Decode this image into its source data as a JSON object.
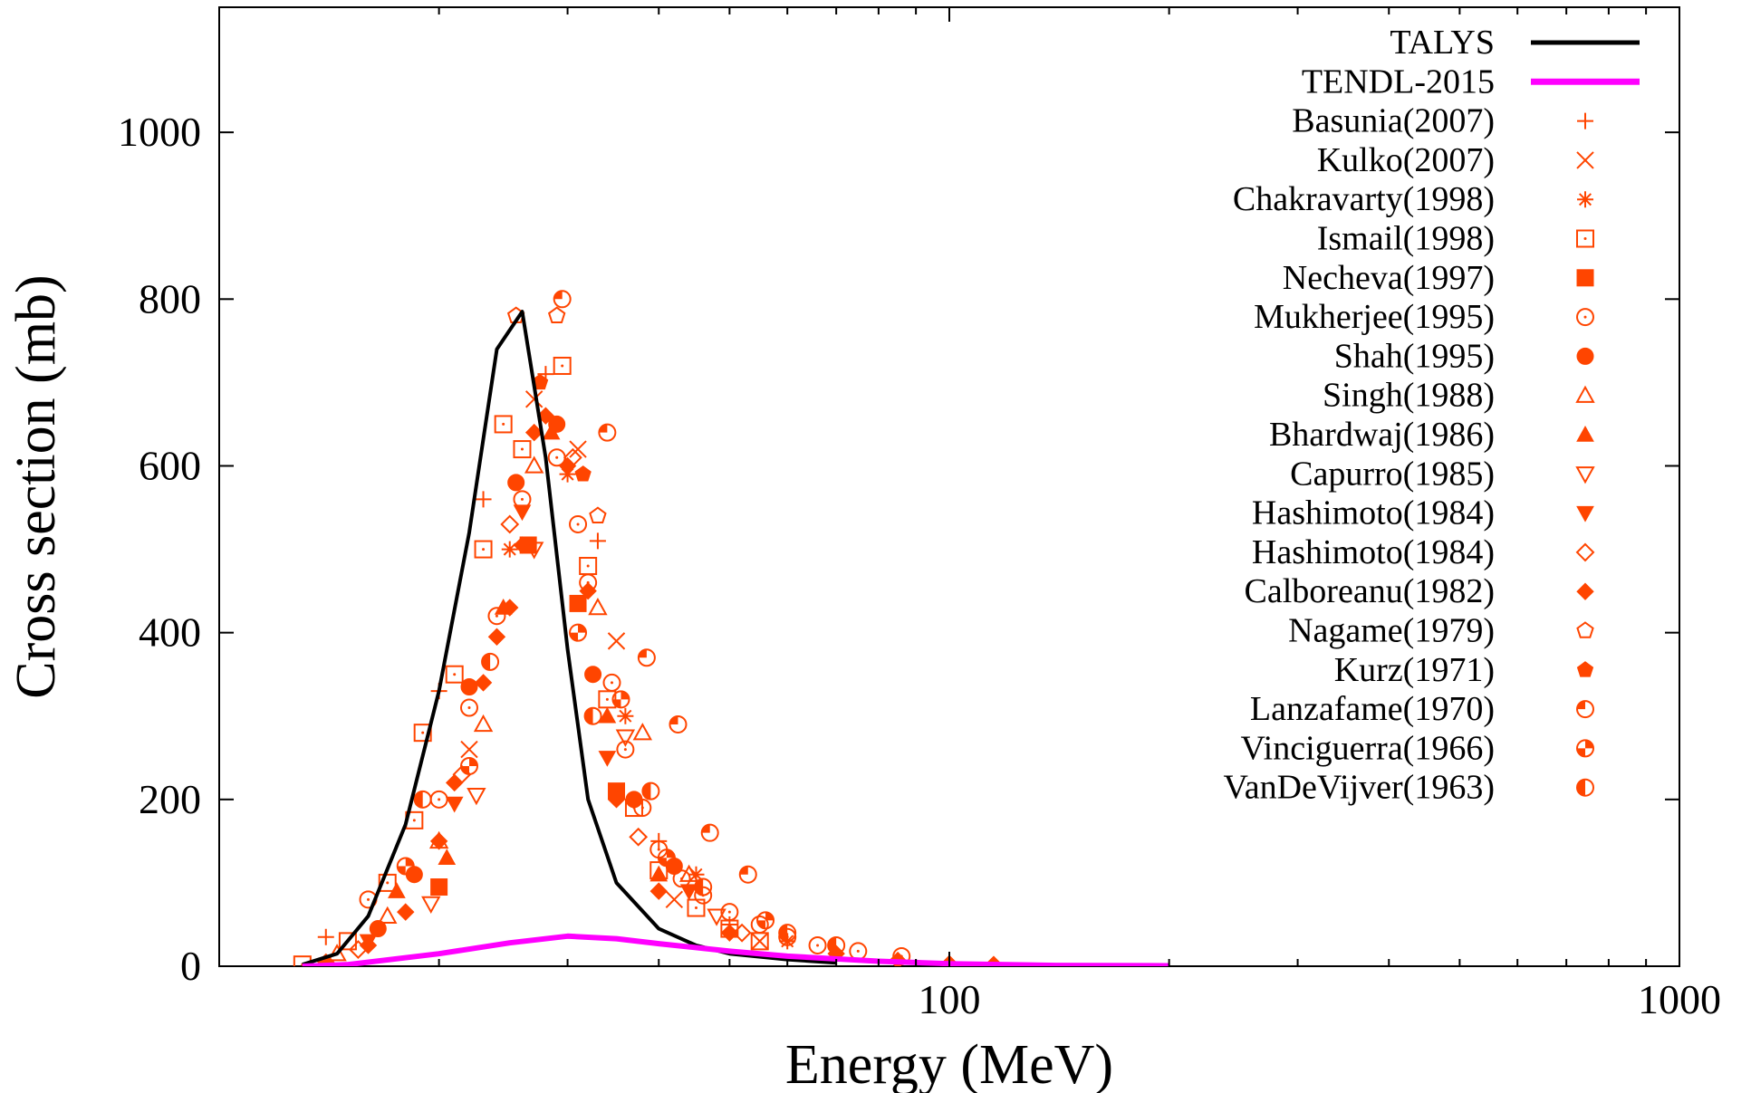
{
  "chart_data": {
    "type": "scatter",
    "xlabel": "Energy (MeV)",
    "ylabel": "Cross section (mb)",
    "xscale": "log",
    "xlim": [
      10,
      1000
    ],
    "ylim": [
      0,
      1150
    ],
    "x_ticks": [
      100,
      1000
    ],
    "x_tick_labels": [
      "100",
      "1000"
    ],
    "y_ticks": [
      0,
      200,
      400,
      600,
      800,
      1000
    ],
    "y_tick_labels": [
      "0",
      "200",
      "400",
      "600",
      "800",
      "1000"
    ],
    "grid": false,
    "legend_position": "top-right",
    "marker_color": "#ff4500",
    "curves": [
      {
        "name": "TALYS",
        "color": "#000000",
        "x": [
          13.0,
          14.5,
          16.0,
          18.0,
          20.0,
          22.0,
          24.0,
          26.0,
          28.0,
          30.0,
          32.0,
          35.0,
          40.0,
          45.0,
          50.0,
          60.0,
          70.0
        ],
        "y": [
          2,
          15,
          60,
          170,
          330,
          520,
          740,
          785,
          610,
          380,
          200,
          100,
          45,
          25,
          15,
          8,
          4
        ]
      },
      {
        "name": "TENDL-2015",
        "color": "#ff00ff",
        "x": [
          13.0,
          15.0,
          20.0,
          25.0,
          30.0,
          35.0,
          40.0,
          50.0,
          60.0,
          80.0,
          100.0,
          140.0,
          200.0
        ],
        "y": [
          0,
          2,
          15,
          28,
          36,
          33,
          27,
          18,
          12,
          6,
          3,
          1,
          0.5
        ]
      }
    ],
    "series": [
      {
        "name": "Basunia(2007)",
        "marker": "plus",
        "points": [
          [
            14.0,
            35
          ],
          [
            20.0,
            330
          ],
          [
            23.0,
            560
          ],
          [
            28.0,
            710
          ],
          [
            33.0,
            510
          ],
          [
            40.0,
            150
          ],
          [
            50.0,
            50
          ]
        ]
      },
      {
        "name": "Kulko(2007)",
        "marker": "x",
        "points": [
          [
            22.0,
            260
          ],
          [
            27.0,
            680
          ],
          [
            31.0,
            620
          ],
          [
            35.0,
            390
          ],
          [
            42.0,
            80
          ],
          [
            55.0,
            30
          ]
        ]
      },
      {
        "name": "Chakravarty(1998)",
        "marker": "star",
        "points": [
          [
            25.0,
            500
          ],
          [
            30.0,
            590
          ],
          [
            36.0,
            300
          ],
          [
            45.0,
            110
          ],
          [
            60.0,
            30
          ]
        ]
      },
      {
        "name": "Ismail(1998)",
        "marker": "square-open",
        "points": [
          [
            13.0,
            2
          ],
          [
            15.0,
            30
          ],
          [
            17.0,
            100
          ],
          [
            18.5,
            175
          ],
          [
            19.0,
            280
          ],
          [
            21.0,
            350
          ],
          [
            23.0,
            500
          ],
          [
            24.5,
            650
          ],
          [
            26.0,
            620
          ],
          [
            29.5,
            720
          ],
          [
            32.0,
            480
          ],
          [
            34.0,
            320
          ],
          [
            37.0,
            190
          ],
          [
            40.0,
            115
          ],
          [
            45.0,
            70
          ],
          [
            50.0,
            45
          ],
          [
            55.0,
            30
          ]
        ]
      },
      {
        "name": "Necheva(1997)",
        "marker": "square-filled",
        "points": [
          [
            20.0,
            95
          ],
          [
            26.5,
            505
          ],
          [
            31.0,
            435
          ],
          [
            35.0,
            210
          ]
        ]
      },
      {
        "name": "Mukherjee(1995)",
        "marker": "circle-open",
        "points": [
          [
            16.0,
            80
          ],
          [
            20.0,
            200
          ],
          [
            22.0,
            310
          ],
          [
            24.0,
            420
          ],
          [
            26.0,
            560
          ],
          [
            29.0,
            610
          ],
          [
            31.0,
            530
          ],
          [
            32.0,
            460
          ],
          [
            34.5,
            340
          ],
          [
            36.0,
            260
          ],
          [
            38.0,
            190
          ],
          [
            40.0,
            140
          ],
          [
            43.0,
            105
          ],
          [
            46.0,
            85
          ],
          [
            50.0,
            65
          ],
          [
            55.0,
            50
          ],
          [
            60.0,
            35
          ],
          [
            66.0,
            25
          ],
          [
            75.0,
            18
          ],
          [
            86.0,
            12
          ]
        ]
      },
      {
        "name": "Shah(1995)",
        "marker": "circle-filled",
        "points": [
          [
            16.5,
            45
          ],
          [
            18.5,
            110
          ],
          [
            22.0,
            335
          ],
          [
            25.5,
            580
          ],
          [
            29.0,
            650
          ],
          [
            32.5,
            350
          ],
          [
            37.0,
            200
          ],
          [
            42.0,
            120
          ]
        ]
      },
      {
        "name": "Singh(1988)",
        "marker": "triangle-open",
        "points": [
          [
            14.5,
            15
          ],
          [
            17.0,
            60
          ],
          [
            20.0,
            150
          ],
          [
            23.0,
            290
          ],
          [
            27.0,
            600
          ],
          [
            33.0,
            430
          ],
          [
            38.0,
            280
          ],
          [
            44.0,
            110
          ]
        ]
      },
      {
        "name": "Bhardwaj(1986)",
        "marker": "triangle-filled",
        "points": [
          [
            17.5,
            90
          ],
          [
            20.5,
            130
          ],
          [
            24.5,
            430
          ],
          [
            28.5,
            640
          ],
          [
            34.0,
            300
          ],
          [
            40.0,
            110
          ]
        ]
      },
      {
        "name": "Capurro(1985)",
        "marker": "triangle-down-open",
        "points": [
          [
            19.5,
            75
          ],
          [
            22.5,
            205
          ],
          [
            27.0,
            500
          ],
          [
            36.0,
            275
          ],
          [
            48.0,
            60
          ]
        ]
      },
      {
        "name": "Hashimoto(1984)",
        "marker": "triangle-down-filled",
        "points": [
          [
            16.0,
            30
          ],
          [
            21.0,
            195
          ],
          [
            26.0,
            545
          ],
          [
            34.0,
            250
          ],
          [
            44.0,
            90
          ]
        ]
      },
      {
        "name": "Hashimoto(1984)",
        "marker": "diamond-open",
        "points": [
          [
            15.5,
            20
          ],
          [
            21.5,
            230
          ],
          [
            25.0,
            530
          ],
          [
            30.5,
            610
          ],
          [
            37.5,
            155
          ],
          [
            52.0,
            40
          ]
        ]
      },
      {
        "name": "Calboreanu(1982)",
        "marker": "diamond-filled",
        "points": [
          [
            14.0,
            5
          ],
          [
            16.0,
            25
          ],
          [
            18.0,
            65
          ],
          [
            20.0,
            150
          ],
          [
            21.0,
            220
          ],
          [
            23.0,
            340
          ],
          [
            24.0,
            395
          ],
          [
            25.0,
            430
          ],
          [
            26.0,
            505
          ],
          [
            27.0,
            640
          ],
          [
            28.0,
            660
          ],
          [
            30.0,
            600
          ],
          [
            32.0,
            450
          ],
          [
            35.0,
            200
          ],
          [
            40.0,
            90
          ],
          [
            50.0,
            40
          ],
          [
            70.0,
            15
          ],
          [
            85.0,
            7
          ],
          [
            100.0,
            3
          ],
          [
            115.0,
            2
          ]
        ]
      },
      {
        "name": "Nagame(1979)",
        "marker": "pentagon-open",
        "points": [
          [
            25.5,
            780
          ],
          [
            29.0,
            780
          ],
          [
            33.0,
            540
          ]
        ]
      },
      {
        "name": "Kurz(1971)",
        "marker": "pentagon-filled",
        "points": [
          [
            27.5,
            700
          ],
          [
            31.5,
            590
          ]
        ]
      },
      {
        "name": "Lanzafame(1970)",
        "marker": "circle-half-a",
        "points": [
          [
            29.5,
            800
          ],
          [
            34.0,
            640
          ],
          [
            38.5,
            370
          ],
          [
            42.5,
            290
          ],
          [
            47.0,
            160
          ],
          [
            53.0,
            110
          ]
        ]
      },
      {
        "name": "Vinciguerra(1966)",
        "marker": "circle-half-b",
        "points": [
          [
            18.0,
            120
          ],
          [
            22.0,
            240
          ],
          [
            31.0,
            400
          ],
          [
            35.5,
            320
          ],
          [
            41.0,
            130
          ],
          [
            56.0,
            55
          ]
        ]
      },
      {
        "name": "VanDeVijver(1963)",
        "marker": "circle-half-c",
        "points": [
          [
            19.0,
            200
          ],
          [
            23.5,
            365
          ],
          [
            32.5,
            300
          ],
          [
            39.0,
            210
          ],
          [
            46.0,
            95
          ],
          [
            60.0,
            40
          ],
          [
            70.0,
            25
          ]
        ]
      }
    ]
  }
}
